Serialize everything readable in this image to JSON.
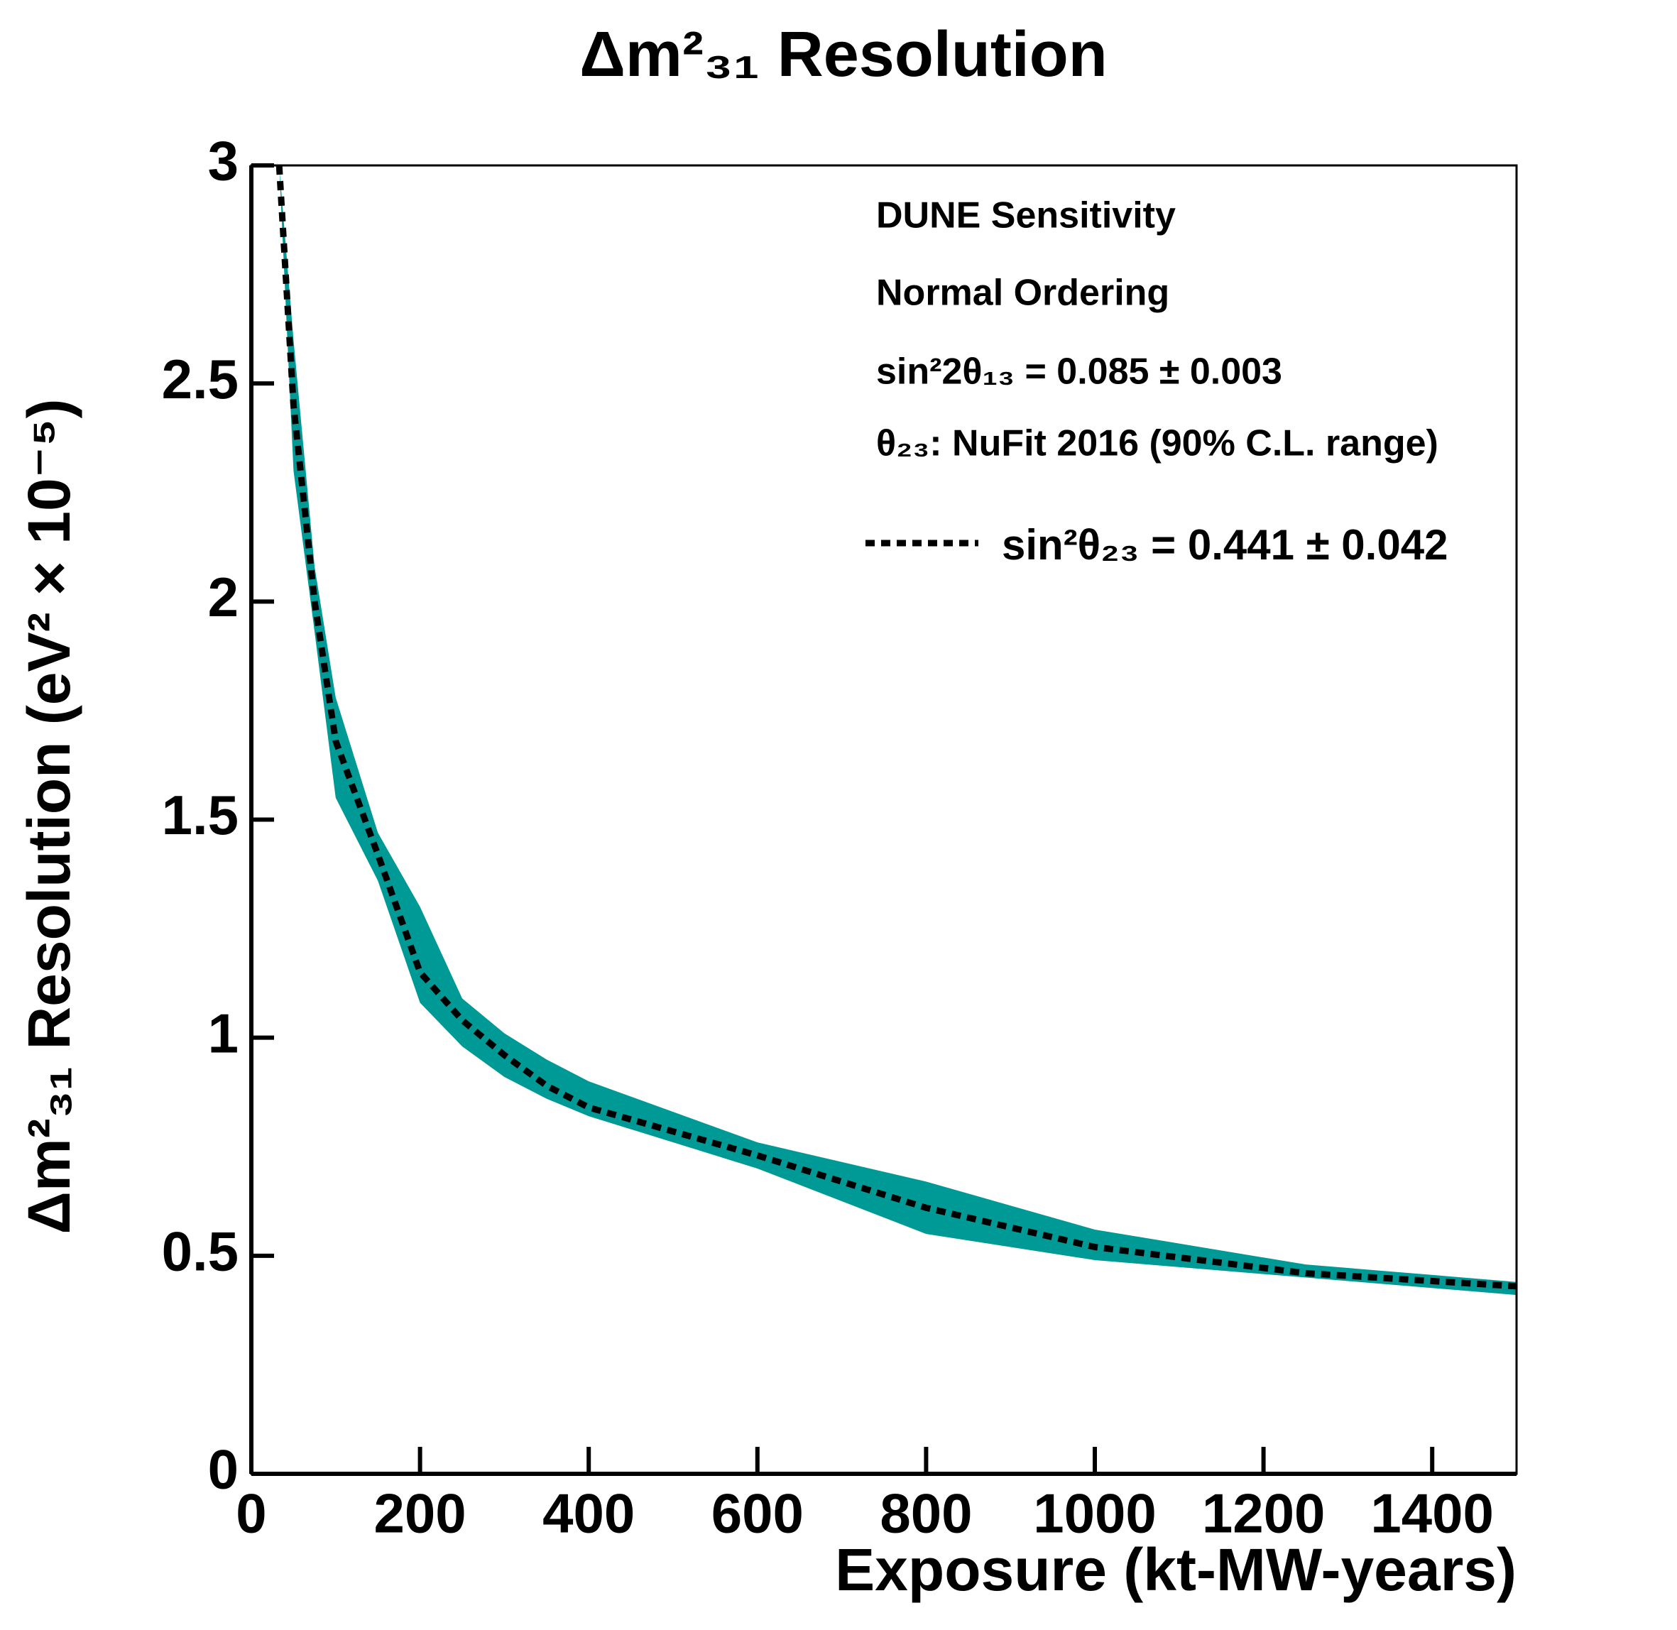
{
  "chart_data": {
    "type": "band-line",
    "title": "Δm²₃₁ Resolution",
    "xlabel": "Exposure (kt-MW-years)",
    "ylabel": "Δm²₃₁ Resolution (eV² × 10⁻⁵)",
    "annotations": [
      "DUNE Sensitivity",
      "Normal Ordering",
      "sin²2θ₁₃ = 0.085 ± 0.003",
      "θ₂₃: NuFit 2016 (90% C.L. range)"
    ],
    "x": [
      33,
      50,
      75,
      100,
      150,
      200,
      250,
      300,
      350,
      400,
      600,
      800,
      1000,
      1250,
      1500
    ],
    "band": {
      "color": "#009a96",
      "upper": [
        3.0,
        2.6,
        2.08,
        1.78,
        1.47,
        1.3,
        1.09,
        1.01,
        0.95,
        0.9,
        0.76,
        0.67,
        0.56,
        0.48,
        0.44
      ],
      "lower": [
        3.0,
        2.3,
        1.93,
        1.55,
        1.36,
        1.08,
        0.98,
        0.91,
        0.86,
        0.82,
        0.7,
        0.55,
        0.49,
        0.45,
        0.41
      ]
    },
    "series": [
      {
        "name": "sin²θ₂₃ = 0.441 ± 0.042",
        "color": "#000000",
        "values": [
          3.0,
          2.45,
          2.0,
          1.68,
          1.42,
          1.15,
          1.04,
          0.96,
          0.89,
          0.84,
          0.73,
          0.61,
          0.52,
          0.46,
          0.43
        ]
      }
    ],
    "xlim": [
      0,
      1500
    ],
    "xticks": [
      0,
      200,
      400,
      600,
      800,
      1000,
      1200,
      1400
    ],
    "ylim": [
      0,
      3
    ],
    "yticks": [
      0,
      0.5,
      1,
      1.5,
      2,
      2.5,
      3
    ],
    "grid": false
  }
}
